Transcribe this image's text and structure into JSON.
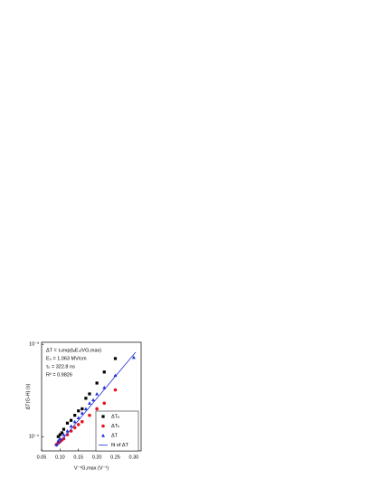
{
  "chart_data": {
    "type": "scatter",
    "y_scale": "log",
    "xlabel": "V⁻¹G,max (V⁻¹)",
    "ylabel": "ΔT(G-H) (s)",
    "annotations": [
      "ΔT = τ₀exp(tₑE₀/VG,max)",
      "E₀ = 1.063 MV/cm",
      "τ₀ = 322.8 ns",
      "R² = 0.9826"
    ],
    "xlim": [
      0.05,
      0.32
    ],
    "xticks": [
      {
        "value": 0.05,
        "label": "0.05"
      },
      {
        "value": 0.1,
        "label": "0.10"
      },
      {
        "value": 0.15,
        "label": "0.15"
      },
      {
        "value": 0.2,
        "label": "0.20"
      },
      {
        "value": 0.25,
        "label": "0.25"
      },
      {
        "value": 0.3,
        "label": "0.30"
      }
    ],
    "ylim": [
      7e-05,
      0.00105
    ],
    "yticks": [
      {
        "value": 0.0001,
        "label": "10⁻⁴"
      },
      {
        "value": 0.001,
        "label": "10⁻³"
      }
    ],
    "legend": "lower right",
    "series": [
      {
        "name": "ΔTₑ",
        "color": "#000000",
        "marker": "square",
        "x": [
          0.095,
          0.1,
          0.105,
          0.11,
          0.12,
          0.13,
          0.14,
          0.15,
          0.16,
          0.17,
          0.18,
          0.2,
          0.22,
          0.25
        ],
        "values": [
          0.0001,
          0.000105,
          0.00011,
          0.00012,
          0.00014,
          0.00015,
          0.00017,
          0.00019,
          0.0002,
          0.00026,
          0.00029,
          0.00038,
          0.0005,
          0.0007
        ]
      },
      {
        "name": "ΔTₕ",
        "color": "#e8141c",
        "marker": "circle",
        "x": [
          0.09,
          0.095,
          0.1,
          0.105,
          0.11,
          0.12,
          0.13,
          0.14,
          0.15,
          0.16,
          0.18,
          0.2,
          0.22,
          0.25
        ],
        "values": [
          8.2e-05,
          8.5e-05,
          8.8e-05,
          9.2e-05,
          9.5e-05,
          0.000105,
          0.000115,
          0.000125,
          0.000135,
          0.000145,
          0.00017,
          0.0002,
          0.00023,
          0.00032
        ]
      },
      {
        "name": "ΔT",
        "color": "#1f2fd6",
        "marker": "triangle",
        "x": [
          0.09,
          0.095,
          0.1,
          0.11,
          0.12,
          0.13,
          0.14,
          0.15,
          0.16,
          0.17,
          0.18,
          0.19,
          0.2,
          0.22,
          0.25,
          0.3
        ],
        "values": [
          8.2e-05,
          9e-05,
          9.5e-05,
          0.000105,
          0.000115,
          0.00013,
          0.000145,
          0.00016,
          0.00018,
          0.0002,
          0.00023,
          0.00025,
          0.00029,
          0.00034,
          0.00046,
          0.00072
        ]
      },
      {
        "name": "fit of ΔT",
        "color": "#1f2fd6",
        "marker": "line",
        "x": [
          0.09,
          0.305
        ],
        "values": [
          7.8e-05,
          0.00082
        ]
      }
    ]
  }
}
